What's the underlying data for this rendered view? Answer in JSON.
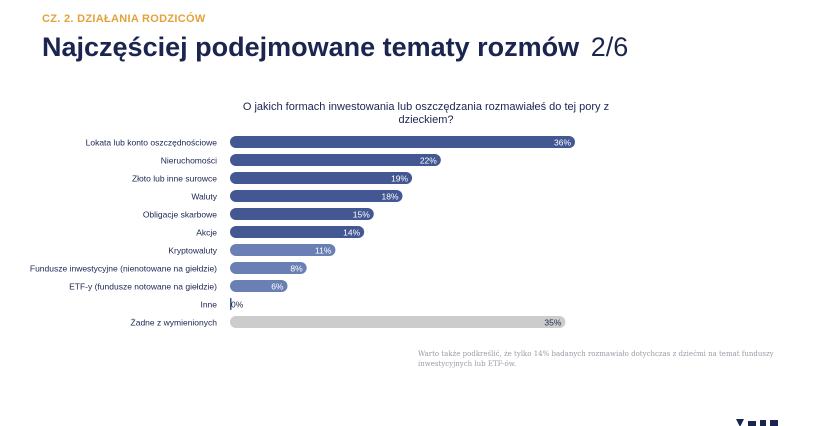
{
  "header": {
    "section": "CZ. 2. DZIAŁANIA RODZICÓW",
    "title": "Najczęściej podejmowane tematy rozmów",
    "page_counter": "2/6"
  },
  "question": "O jakich formach inwestowania lub oszczędzania rozmawiałeś do tej pory z dzieckiem?",
  "footnote": "Warto także podkreślić, że tylko 14% badanych rozmawiało dotychczas z dziećmi na temat funduszy inwestycyjnych lub ETF-ów.",
  "colors": {
    "bar_dark": "#435892",
    "bar_light": "#6a80b5",
    "bar_none": "#cccccc",
    "accent": "#e3a23a",
    "title": "#1b2550"
  },
  "chart_data": {
    "type": "bar",
    "orientation": "horizontal",
    "title": "O jakich formach inwestowania lub oszczędzania rozmawiałeś do tej pory z dzieckiem?",
    "categories": [
      "Lokata lub konto oszczędnościowe",
      "Nieruchomości",
      "Złoto lub inne surowce",
      "Waluty",
      "Obligacje skarbowe",
      "Akcje",
      "Kryptowaluty",
      "Fundusze inwestycyjne (nienotowane na giełdzie)",
      "ETF-y (fundusze notowane na giełdzie)",
      "Inne",
      "Żadne z wymienionych"
    ],
    "values": [
      36,
      22,
      19,
      18,
      15,
      14,
      11,
      8,
      6,
      0,
      35
    ],
    "value_labels": [
      "36%",
      "22%",
      "19%",
      "18%",
      "15%",
      "14%",
      "11%",
      "8%",
      "6%",
      "0%",
      "35%"
    ],
    "unit": "%",
    "xlim": [
      0,
      36
    ],
    "grid": false,
    "legend": "none"
  }
}
